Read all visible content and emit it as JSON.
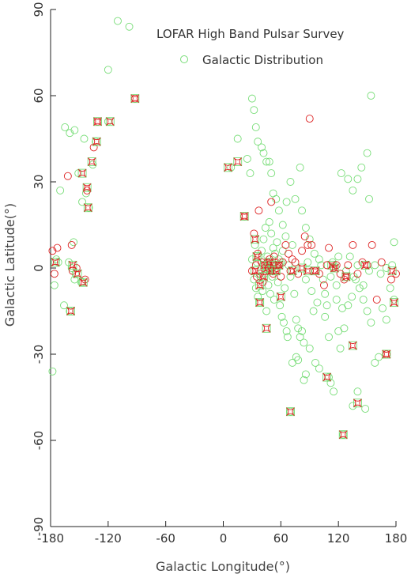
{
  "chart_data": {
    "type": "scatter",
    "title": "",
    "xlabel": "Galactic Longitude(°)",
    "ylabel": "Galactic Latitude(°)",
    "xlim": [
      -180,
      180
    ],
    "ylim": [
      -90,
      90
    ],
    "xticks": [
      -180,
      -120,
      -60,
      0,
      60,
      120,
      180
    ],
    "yticks": [
      -90,
      -60,
      -30,
      0,
      30,
      60,
      90
    ],
    "legend_position": "top-right",
    "grid": false,
    "series": [
      {
        "name": "LOFAR High Band Pulsar Survey",
        "marker": "circle",
        "color": "#dd2222",
        "points": [
          [
            -178,
            6
          ],
          [
            -176,
            -2
          ],
          [
            -173,
            7
          ],
          [
            -162,
            32
          ],
          [
            -158,
            8
          ],
          [
            -157,
            -1
          ],
          [
            -153,
            0
          ],
          [
            -144,
            -4
          ],
          [
            -142,
            27
          ],
          [
            -135,
            42
          ],
          [
            -131,
            51
          ],
          [
            -92,
            59
          ],
          [
            22,
            18
          ],
          [
            30,
            -1
          ],
          [
            32,
            12
          ],
          [
            34,
            1
          ],
          [
            35,
            -3
          ],
          [
            36,
            5
          ],
          [
            37,
            20
          ],
          [
            38,
            -2
          ],
          [
            40,
            2
          ],
          [
            41,
            -5
          ],
          [
            43,
            1
          ],
          [
            44,
            -1
          ],
          [
            46,
            2
          ],
          [
            47,
            0
          ],
          [
            48,
            3
          ],
          [
            49,
            -1
          ],
          [
            50,
            23
          ],
          [
            51,
            1
          ],
          [
            52,
            -2
          ],
          [
            53,
            4
          ],
          [
            54,
            2
          ],
          [
            56,
            0
          ],
          [
            58,
            1
          ],
          [
            60,
            -3
          ],
          [
            62,
            2
          ],
          [
            65,
            8
          ],
          [
            68,
            5
          ],
          [
            70,
            -1
          ],
          [
            72,
            3
          ],
          [
            75,
            2
          ],
          [
            78,
            -2
          ],
          [
            82,
            6
          ],
          [
            85,
            11
          ],
          [
            88,
            8
          ],
          [
            90,
            52
          ],
          [
            92,
            8
          ],
          [
            96,
            -1
          ],
          [
            100,
            -2
          ],
          [
            105,
            -6
          ],
          [
            108,
            1
          ],
          [
            110,
            7
          ],
          [
            115,
            0
          ],
          [
            118,
            1
          ],
          [
            122,
            -2
          ],
          [
            126,
            -4
          ],
          [
            128,
            -3
          ],
          [
            130,
            1
          ],
          [
            135,
            8
          ],
          [
            140,
            -2
          ],
          [
            145,
            2
          ],
          [
            150,
            1
          ],
          [
            155,
            8
          ],
          [
            160,
            -11
          ],
          [
            165,
            2
          ],
          [
            170,
            -30
          ],
          [
            175,
            -4
          ],
          [
            180,
            -2
          ]
        ]
      },
      {
        "name": "Galactic Distribution",
        "marker": "circle",
        "color": "#77dd77",
        "points": [
          [
            -110,
            86
          ],
          [
            -98,
            84
          ],
          [
            -120,
            69
          ],
          [
            -165,
            49
          ],
          [
            -160,
            47
          ],
          [
            -155,
            48
          ],
          [
            -145,
            45
          ],
          [
            -151,
            33
          ],
          [
            -143,
            26
          ],
          [
            -140,
            21
          ],
          [
            -147,
            23
          ],
          [
            -133,
            44
          ],
          [
            -136,
            36
          ],
          [
            -120,
            51
          ],
          [
            -170,
            27
          ],
          [
            -174,
            3
          ],
          [
            -176,
            -6
          ],
          [
            -166,
            -13
          ],
          [
            -160,
            -15
          ],
          [
            -156,
            9
          ],
          [
            -161,
            2
          ],
          [
            -155,
            -4
          ],
          [
            -148,
            -5
          ],
          [
            -178,
            -36
          ],
          [
            8,
            35
          ],
          [
            15,
            45
          ],
          [
            25,
            38
          ],
          [
            28,
            33
          ],
          [
            30,
            59
          ],
          [
            32,
            55
          ],
          [
            34,
            49
          ],
          [
            36,
            44
          ],
          [
            40,
            42
          ],
          [
            42,
            40
          ],
          [
            45,
            37
          ],
          [
            48,
            37
          ],
          [
            50,
            33
          ],
          [
            52,
            26
          ],
          [
            55,
            24
          ],
          [
            58,
            20
          ],
          [
            62,
            15
          ],
          [
            66,
            23
          ],
          [
            70,
            30
          ],
          [
            75,
            24
          ],
          [
            80,
            35
          ],
          [
            82,
            20
          ],
          [
            86,
            14
          ],
          [
            90,
            10
          ],
          [
            95,
            5
          ],
          [
            100,
            3
          ],
          [
            104,
            -4
          ],
          [
            106,
            -9
          ],
          [
            108,
            -13
          ],
          [
            112,
            -3
          ],
          [
            118,
            -6
          ],
          [
            120,
            -22
          ],
          [
            122,
            -28
          ],
          [
            126,
            -21
          ],
          [
            130,
            -13
          ],
          [
            134,
            -10
          ],
          [
            138,
            -4
          ],
          [
            142,
            -7
          ],
          [
            146,
            -11
          ],
          [
            150,
            -15
          ],
          [
            154,
            -19
          ],
          [
            158,
            -33
          ],
          [
            162,
            -31
          ],
          [
            166,
            -14
          ],
          [
            170,
            -18
          ],
          [
            174,
            -7
          ],
          [
            178,
            9
          ],
          [
            123,
            33
          ],
          [
            130,
            31
          ],
          [
            135,
            27
          ],
          [
            140,
            31
          ],
          [
            144,
            35
          ],
          [
            150,
            40
          ],
          [
            152,
            24
          ],
          [
            154,
            60
          ],
          [
            148,
            -49
          ],
          [
            135,
            -48
          ],
          [
            140,
            -43
          ],
          [
            125,
            -58
          ],
          [
            115,
            -43
          ],
          [
            112,
            -40
          ],
          [
            110,
            -38
          ],
          [
            100,
            -35
          ],
          [
            96,
            -33
          ],
          [
            90,
            -28
          ],
          [
            86,
            -37
          ],
          [
            84,
            -39
          ],
          [
            78,
            -32
          ],
          [
            76,
            -31
          ],
          [
            72,
            -33
          ],
          [
            70,
            -50
          ],
          [
            30,
            3
          ],
          [
            32,
            -4
          ],
          [
            33,
            8
          ],
          [
            34,
            -7
          ],
          [
            35,
            2
          ],
          [
            36,
            -10
          ],
          [
            37,
            4
          ],
          [
            38,
            -12
          ],
          [
            39,
            -3
          ],
          [
            40,
            6
          ],
          [
            41,
            -8
          ],
          [
            42,
            10
          ],
          [
            43,
            -2
          ],
          [
            44,
            14
          ],
          [
            45,
            -15
          ],
          [
            46,
            4
          ],
          [
            47,
            -6
          ],
          [
            48,
            16
          ],
          [
            49,
            -9
          ],
          [
            50,
            12
          ],
          [
            51,
            -3
          ],
          [
            52,
            7
          ],
          [
            53,
            -11
          ],
          [
            54,
            5
          ],
          [
            55,
            -1
          ],
          [
            56,
            9
          ],
          [
            57,
            -5
          ],
          [
            58,
            3
          ],
          [
            59,
            -13
          ],
          [
            60,
            2
          ],
          [
            61,
            -17
          ],
          [
            62,
            6
          ],
          [
            63,
            -19
          ],
          [
            64,
            -7
          ],
          [
            65,
            11
          ],
          [
            66,
            -22
          ],
          [
            67,
            -24
          ],
          [
            68,
            1
          ],
          [
            70,
            -3
          ],
          [
            72,
            8
          ],
          [
            74,
            -9
          ],
          [
            76,
            -18
          ],
          [
            78,
            -21
          ],
          [
            80,
            -24
          ],
          [
            82,
            -22
          ],
          [
            84,
            -26
          ],
          [
            86,
            -4
          ],
          [
            88,
            2
          ],
          [
            92,
            -8
          ],
          [
            94,
            -15
          ],
          [
            98,
            -12
          ],
          [
            102,
            1
          ],
          [
            106,
            -17
          ],
          [
            110,
            -24
          ],
          [
            114,
            2
          ],
          [
            118,
            -11
          ],
          [
            120,
            4
          ],
          [
            124,
            -14
          ],
          [
            128,
            -1
          ],
          [
            132,
            4
          ],
          [
            136,
            -3
          ],
          [
            140,
            1
          ],
          [
            146,
            -6
          ],
          [
            152,
            -1
          ],
          [
            158,
            1
          ],
          [
            164,
            -2
          ],
          [
            170,
            0
          ],
          [
            176,
            1
          ],
          [
            178,
            -11
          ],
          [
            -158,
            0
          ],
          [
            -154,
            -2
          ],
          [
            -147,
            -5
          ],
          [
            -172,
            2
          ]
        ]
      }
    ],
    "overlap_markers": [
      [
        -175,
        2
      ],
      [
        -157,
        1
      ],
      [
        -152,
        -2
      ],
      [
        -146,
        -5
      ],
      [
        -159,
        -15
      ],
      [
        -142,
        28
      ],
      [
        -137,
        37
      ],
      [
        -132,
        44
      ],
      [
        -147,
        33
      ],
      [
        -141,
        21
      ],
      [
        -131,
        51
      ],
      [
        -118,
        51
      ],
      [
        -92,
        59
      ],
      [
        5,
        35
      ],
      [
        15,
        37
      ],
      [
        22,
        18
      ],
      [
        33,
        10
      ],
      [
        33,
        -1
      ],
      [
        35,
        4
      ],
      [
        38,
        -6
      ],
      [
        38,
        -12
      ],
      [
        42,
        -3
      ],
      [
        43,
        1
      ],
      [
        45,
        -21
      ],
      [
        46,
        0
      ],
      [
        48,
        2
      ],
      [
        50,
        -1
      ],
      [
        52,
        1
      ],
      [
        55,
        -1
      ],
      [
        58,
        1
      ],
      [
        60,
        -10
      ],
      [
        70,
        -50
      ],
      [
        72,
        -1
      ],
      [
        82,
        0
      ],
      [
        88,
        -1
      ],
      [
        96,
        -1
      ],
      [
        108,
        -38
      ],
      [
        113,
        1
      ],
      [
        116,
        0
      ],
      [
        125,
        -58
      ],
      [
        128,
        -3
      ],
      [
        135,
        -27
      ],
      [
        140,
        -47
      ],
      [
        148,
        1
      ],
      [
        170,
        -30
      ],
      [
        176,
        -1
      ],
      [
        178,
        -12
      ]
    ]
  }
}
